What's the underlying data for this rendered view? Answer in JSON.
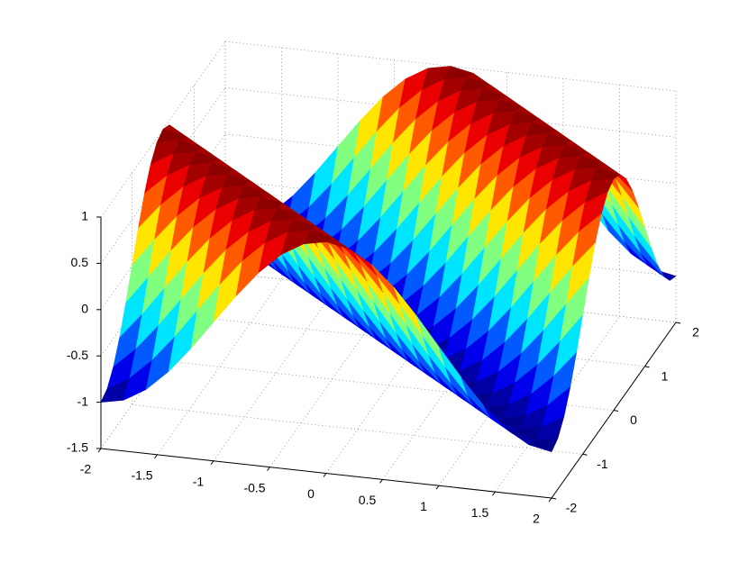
{
  "chart_data": {
    "type": "surface",
    "colormap": "jet",
    "x": [
      -2,
      -1.8,
      -1.6,
      -1.4,
      -1.2,
      -1,
      -0.8,
      -0.6,
      -0.4,
      -0.2,
      0,
      0.2,
      0.4,
      0.6,
      0.8,
      1,
      1.2,
      1.4,
      1.6,
      1.8,
      2
    ],
    "y": [
      -2,
      -1.8,
      -1.6,
      -1.4,
      -1.2,
      -1,
      -0.8,
      -0.6,
      -0.4,
      -0.2,
      0,
      0.2,
      0.4,
      0.6,
      0.8,
      1,
      1.2,
      1.4,
      1.6,
      1.8,
      2
    ],
    "z": [
      [
        -1,
        -0.9511,
        -0.809,
        -0.5878,
        -0.309,
        0,
        0.309,
        0.5878,
        0.809,
        0.9511,
        1,
        0.9511,
        0.809,
        0.5878,
        0.309,
        0,
        -0.309,
        -0.5878,
        -0.809,
        -0.9511,
        -1
      ],
      [
        -0.9511,
        -0.809,
        -0.5878,
        -0.309,
        0,
        0.309,
        0.5878,
        0.809,
        0.9511,
        1,
        0.9511,
        0.809,
        0.5878,
        0.309,
        0,
        -0.309,
        -0.5878,
        -0.809,
        -0.9511,
        -1,
        -0.9511
      ],
      [
        -0.809,
        -0.5878,
        -0.309,
        0,
        0.309,
        0.5878,
        0.809,
        0.9511,
        1,
        0.9511,
        0.809,
        0.5878,
        0.309,
        0,
        -0.309,
        -0.5878,
        -0.809,
        -0.9511,
        -1,
        -0.9511,
        -0.809
      ],
      [
        -0.5878,
        -0.309,
        0,
        0.309,
        0.5878,
        0.809,
        0.9511,
        1,
        0.9511,
        0.809,
        0.5878,
        0.309,
        0,
        -0.309,
        -0.5878,
        -0.809,
        -0.9511,
        -1,
        -0.9511,
        -0.809,
        -0.5878
      ],
      [
        -0.309,
        0,
        0.309,
        0.5878,
        0.809,
        0.9511,
        1,
        0.9511,
        0.809,
        0.5878,
        0.309,
        0,
        -0.309,
        -0.5878,
        -0.809,
        -0.9511,
        -1,
        -0.9511,
        -0.809,
        -0.5878,
        -0.309
      ],
      [
        0,
        0.309,
        0.5878,
        0.809,
        0.9511,
        1,
        0.9511,
        0.809,
        0.5878,
        0.309,
        0,
        -0.309,
        -0.5878,
        -0.809,
        -0.9511,
        -1,
        -0.9511,
        -0.809,
        -0.5878,
        -0.309,
        0
      ],
      [
        0.309,
        0.5878,
        0.809,
        0.9511,
        1,
        0.9511,
        0.809,
        0.5878,
        0.309,
        0,
        -0.309,
        -0.5878,
        -0.809,
        -0.9511,
        -1,
        -0.9511,
        -0.809,
        -0.5878,
        -0.309,
        0,
        0.309
      ],
      [
        0.5878,
        0.809,
        0.9511,
        1,
        0.9511,
        0.809,
        0.5878,
        0.309,
        0,
        -0.309,
        -0.5878,
        -0.809,
        -0.9511,
        -1,
        -0.9511,
        -0.809,
        -0.5878,
        -0.309,
        0,
        0.309,
        0.5878
      ],
      [
        0.809,
        0.9511,
        1,
        0.9511,
        0.809,
        0.5878,
        0.309,
        0,
        -0.309,
        -0.5878,
        -0.809,
        -0.9511,
        -1,
        -0.9511,
        -0.809,
        -0.5878,
        -0.309,
        0,
        0.309,
        0.5878,
        0.809
      ],
      [
        0.9511,
        1,
        0.9511,
        0.809,
        0.5878,
        0.309,
        0,
        -0.309,
        -0.5878,
        -0.809,
        -0.9511,
        -1,
        -0.9511,
        -0.809,
        -0.5878,
        -0.309,
        0,
        0.309,
        0.5878,
        0.809,
        0.9511
      ],
      [
        1,
        0.9511,
        0.809,
        0.5878,
        0.309,
        0,
        -0.309,
        -0.5878,
        -0.809,
        -0.9511,
        -1,
        -0.9511,
        -0.809,
        -0.5878,
        -0.309,
        0,
        0.309,
        0.5878,
        0.809,
        0.9511,
        1
      ],
      [
        0.9511,
        0.809,
        0.5878,
        0.309,
        0,
        -0.309,
        -0.5878,
        -0.809,
        -0.9511,
        -1,
        -0.9511,
        -0.809,
        -0.5878,
        -0.309,
        0,
        0.309,
        0.5878,
        0.809,
        0.9511,
        1,
        0.9511
      ],
      [
        0.809,
        0.5878,
        0.309,
        0,
        -0.309,
        -0.5878,
        -0.809,
        -0.9511,
        -1,
        -0.9511,
        -0.809,
        -0.5878,
        -0.309,
        0,
        0.309,
        0.5878,
        0.809,
        0.9511,
        1,
        0.9511,
        0.809
      ],
      [
        0.5878,
        0.309,
        0,
        -0.309,
        -0.5878,
        -0.809,
        -0.9511,
        -1,
        -0.9511,
        -0.809,
        -0.5878,
        -0.309,
        0,
        0.309,
        0.5878,
        0.809,
        0.9511,
        1,
        0.9511,
        0.809,
        0.5878
      ],
      [
        0.309,
        0,
        -0.309,
        -0.5878,
        -0.809,
        -0.9511,
        -1,
        -0.9511,
        -0.809,
        -0.5878,
        -0.309,
        0,
        0.309,
        0.5878,
        0.809,
        0.9511,
        1,
        0.9511,
        0.809,
        0.5878,
        0.309
      ],
      [
        0,
        -0.309,
        -0.5878,
        -0.809,
        -0.9511,
        -1,
        -0.9511,
        -0.809,
        -0.5878,
        -0.309,
        0,
        0.309,
        0.5878,
        0.809,
        0.9511,
        1,
        0.9511,
        0.809,
        0.5878,
        0.309,
        0
      ],
      [
        -0.309,
        -0.5878,
        -0.809,
        -0.9511,
        -1,
        -0.9511,
        -0.809,
        -0.5878,
        -0.309,
        0,
        0.309,
        0.5878,
        0.809,
        0.9511,
        1,
        0.9511,
        0.809,
        0.5878,
        0.309,
        0,
        -0.309
      ],
      [
        -0.5878,
        -0.809,
        -0.9511,
        -1,
        -0.9511,
        -0.809,
        -0.5878,
        -0.309,
        0,
        0.309,
        0.5878,
        0.809,
        0.9511,
        1,
        0.9511,
        0.809,
        0.5878,
        0.309,
        0,
        -0.309,
        -0.5878
      ],
      [
        -0.809,
        -0.9511,
        -1,
        -0.9511,
        -0.809,
        -0.5878,
        -0.309,
        0,
        0.309,
        0.5878,
        0.809,
        0.9511,
        1,
        0.9511,
        0.809,
        0.5878,
        0.309,
        0,
        -0.309,
        -0.5878,
        -0.809
      ],
      [
        -0.9511,
        -1,
        -0.9511,
        -0.809,
        -0.5878,
        -0.309,
        0,
        0.309,
        0.5878,
        0.809,
        0.9511,
        1,
        0.9511,
        0.809,
        0.5878,
        0.309,
        0,
        -0.309,
        -0.5878,
        -0.809,
        -0.9511
      ],
      [
        -1,
        -0.9511,
        -0.809,
        -0.5878,
        -0.309,
        0,
        0.309,
        0.5878,
        0.809,
        0.9511,
        1,
        0.9511,
        0.809,
        0.5878,
        0.309,
        0,
        -0.309,
        -0.5878,
        -0.809,
        -0.9511,
        -1
      ]
    ],
    "xlim": [
      -2,
      2
    ],
    "ylim": [
      -2,
      2
    ],
    "zlim": [
      -1.5,
      1
    ],
    "xticks": [
      -2,
      -1.5,
      -1,
      -0.5,
      0,
      0.5,
      1,
      1.5,
      2
    ],
    "yticks": [
      -2,
      -1,
      0,
      1,
      2
    ],
    "zticks": [
      -1.5,
      -1,
      -0.5,
      0,
      0.5,
      1
    ],
    "grid": true
  }
}
